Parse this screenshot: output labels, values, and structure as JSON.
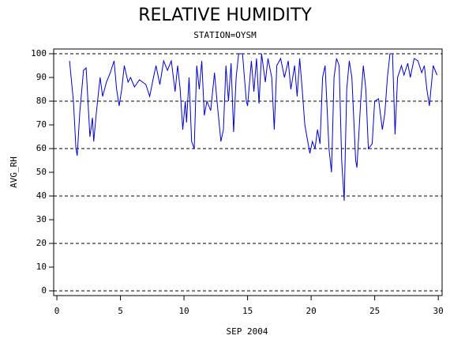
{
  "chart_data": {
    "type": "line",
    "title": "RELATIVE HUMIDITY",
    "subtitle": "STATION=OYSM",
    "x_label": "SEP 2004",
    "y_label": "AVG_RH",
    "x": [
      1.0,
      1.3,
      1.5,
      1.6,
      1.8,
      2.1,
      2.3,
      2.6,
      2.8,
      2.9,
      3.1,
      3.4,
      3.6,
      3.9,
      4.2,
      4.5,
      4.7,
      4.9,
      5.1,
      5.3,
      5.6,
      5.8,
      6.1,
      6.5,
      7.0,
      7.3,
      7.6,
      7.8,
      8.1,
      8.4,
      8.7,
      9.0,
      9.3,
      9.5,
      9.7,
      9.9,
      10.1,
      10.2,
      10.4,
      10.6,
      10.8,
      11.0,
      11.2,
      11.4,
      11.6,
      11.8,
      12.1,
      12.4,
      12.6,
      12.9,
      13.1,
      13.3,
      13.5,
      13.7,
      13.9,
      14.1,
      14.3,
      14.6,
      14.9,
      15.0,
      15.3,
      15.5,
      15.7,
      15.9,
      16.1,
      16.4,
      16.6,
      16.9,
      17.1,
      17.3,
      17.6,
      17.9,
      18.2,
      18.4,
      18.7,
      18.9,
      19.1,
      19.3,
      19.5,
      19.7,
      19.9,
      20.1,
      20.3,
      20.5,
      20.7,
      20.9,
      21.1,
      21.4,
      21.6,
      21.8,
      22.0,
      22.2,
      22.4,
      22.6,
      22.8,
      23.0,
      23.2,
      23.5,
      23.6,
      23.9,
      24.1,
      24.3,
      24.5,
      24.8,
      25.0,
      25.3,
      25.6,
      25.8,
      26.0,
      26.2,
      26.4,
      26.6,
      26.8,
      27.1,
      27.3,
      27.6,
      27.8,
      28.1,
      28.4,
      28.7,
      28.9,
      29.1,
      29.3,
      29.6,
      29.9
    ],
    "series": [
      {
        "name": "AVG_RH",
        "color": "#0000cc",
        "values": [
          97,
          80,
          60,
          57,
          75,
          93,
          94,
          65,
          73,
          63,
          75,
          90,
          82,
          88,
          92,
          97,
          85,
          78,
          85,
          95,
          88,
          90,
          86,
          89,
          87,
          82,
          90,
          95,
          87,
          97,
          93,
          97,
          84,
          95,
          85,
          68,
          80,
          71,
          90,
          63,
          60,
          95,
          85,
          97,
          74,
          80,
          76,
          92,
          80,
          63,
          68,
          95,
          80,
          96,
          67,
          90,
          100,
          100,
          80,
          78,
          97,
          84,
          98,
          79,
          100,
          88,
          98,
          90,
          68,
          95,
          98,
          90,
          97,
          85,
          95,
          82,
          98,
          85,
          70,
          64,
          58,
          63,
          60,
          68,
          62,
          90,
          95,
          60,
          50,
          90,
          98,
          95,
          55,
          38,
          85,
          97,
          90,
          55,
          52,
          80,
          95,
          85,
          60,
          62,
          80,
          81,
          68,
          75,
          90,
          100,
          100,
          66,
          90,
          95,
          91,
          96,
          90,
          98,
          97,
          92,
          95,
          85,
          78,
          95,
          91
        ]
      }
    ],
    "xlim": [
      -0.25,
      30.3
    ],
    "xticks": [
      0,
      5,
      10,
      15,
      20,
      25,
      30
    ],
    "ylim": [
      -2,
      102
    ],
    "yticks": [
      0,
      10,
      20,
      30,
      40,
      50,
      60,
      70,
      80,
      90,
      100
    ],
    "grid_values": [
      0,
      20,
      40,
      60,
      80,
      100
    ]
  }
}
